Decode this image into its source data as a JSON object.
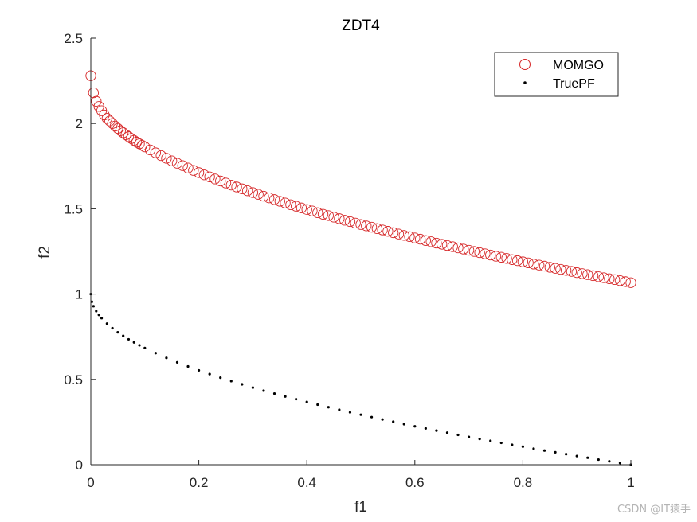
{
  "chart_data": {
    "type": "scatter",
    "title": "ZDT4",
    "xlabel": "f1",
    "ylabel": "f2",
    "xlim": [
      0,
      1
    ],
    "ylim": [
      0,
      2.5
    ],
    "xticks": [
      0,
      0.2,
      0.4,
      0.6,
      0.8,
      1
    ],
    "xtick_labels": [
      "0",
      "0.2",
      "0.4",
      "0.6",
      "0.8",
      "1"
    ],
    "yticks": [
      0,
      0.5,
      1,
      1.5,
      2,
      2.5
    ],
    "ytick_labels": [
      "0",
      "0.5",
      "1",
      "1.5",
      "2",
      "2.5"
    ],
    "grid": false,
    "legend_position": "top-right",
    "series": [
      {
        "name": "MOMGO",
        "marker": "open-circle",
        "color": "#d62728",
        "points": [
          [
            0.0,
            2.28
          ],
          [
            0.005,
            2.18
          ],
          [
            0.01,
            2.13
          ],
          [
            0.015,
            2.1
          ],
          [
            0.02,
            2.075
          ],
          [
            0.025,
            2.05
          ],
          [
            0.03,
            2.03
          ],
          [
            0.035,
            2.015
          ],
          [
            0.04,
            2.0
          ],
          [
            0.045,
            1.985
          ],
          [
            0.05,
            1.971
          ],
          [
            0.055,
            1.958
          ],
          [
            0.06,
            1.946
          ],
          [
            0.065,
            1.934
          ],
          [
            0.07,
            1.923
          ],
          [
            0.075,
            1.912
          ],
          [
            0.08,
            1.901
          ],
          [
            0.085,
            1.891
          ],
          [
            0.09,
            1.881
          ],
          [
            0.095,
            1.872
          ],
          [
            0.1,
            1.863
          ],
          [
            0.11,
            1.845
          ],
          [
            0.12,
            1.828
          ],
          [
            0.13,
            1.812
          ],
          [
            0.14,
            1.796
          ],
          [
            0.15,
            1.781
          ],
          [
            0.16,
            1.767
          ],
          [
            0.17,
            1.753
          ],
          [
            0.18,
            1.739
          ],
          [
            0.19,
            1.725
          ],
          [
            0.2,
            1.712
          ],
          [
            0.21,
            1.699
          ],
          [
            0.22,
            1.687
          ],
          [
            0.23,
            1.675
          ],
          [
            0.24,
            1.663
          ],
          [
            0.25,
            1.651
          ],
          [
            0.26,
            1.639
          ],
          [
            0.27,
            1.628
          ],
          [
            0.28,
            1.617
          ],
          [
            0.29,
            1.606
          ],
          [
            0.3,
            1.595
          ],
          [
            0.31,
            1.585
          ],
          [
            0.32,
            1.574
          ],
          [
            0.33,
            1.564
          ],
          [
            0.34,
            1.554
          ],
          [
            0.35,
            1.544
          ],
          [
            0.36,
            1.534
          ],
          [
            0.37,
            1.524
          ],
          [
            0.38,
            1.515
          ],
          [
            0.39,
            1.505
          ],
          [
            0.4,
            1.496
          ],
          [
            0.41,
            1.487
          ],
          [
            0.42,
            1.477
          ],
          [
            0.43,
            1.468
          ],
          [
            0.44,
            1.46
          ],
          [
            0.45,
            1.451
          ],
          [
            0.46,
            1.442
          ],
          [
            0.47,
            1.433
          ],
          [
            0.48,
            1.425
          ],
          [
            0.49,
            1.416
          ],
          [
            0.5,
            1.408
          ],
          [
            0.51,
            1.4
          ],
          [
            0.52,
            1.392
          ],
          [
            0.53,
            1.384
          ],
          [
            0.54,
            1.376
          ],
          [
            0.55,
            1.368
          ],
          [
            0.56,
            1.36
          ],
          [
            0.57,
            1.352
          ],
          [
            0.58,
            1.344
          ],
          [
            0.59,
            1.337
          ],
          [
            0.6,
            1.329
          ],
          [
            0.61,
            1.322
          ],
          [
            0.62,
            1.314
          ],
          [
            0.63,
            1.307
          ],
          [
            0.64,
            1.299
          ],
          [
            0.65,
            1.292
          ],
          [
            0.66,
            1.285
          ],
          [
            0.67,
            1.278
          ],
          [
            0.68,
            1.271
          ],
          [
            0.69,
            1.264
          ],
          [
            0.7,
            1.257
          ],
          [
            0.71,
            1.25
          ],
          [
            0.72,
            1.243
          ],
          [
            0.73,
            1.236
          ],
          [
            0.74,
            1.229
          ],
          [
            0.75,
            1.222
          ],
          [
            0.76,
            1.216
          ],
          [
            0.77,
            1.209
          ],
          [
            0.78,
            1.202
          ],
          [
            0.79,
            1.196
          ],
          [
            0.8,
            1.189
          ],
          [
            0.81,
            1.183
          ],
          [
            0.82,
            1.176
          ],
          [
            0.83,
            1.17
          ],
          [
            0.84,
            1.164
          ],
          [
            0.85,
            1.157
          ],
          [
            0.86,
            1.151
          ],
          [
            0.87,
            1.145
          ],
          [
            0.88,
            1.139
          ],
          [
            0.89,
            1.133
          ],
          [
            0.9,
            1.126
          ],
          [
            0.91,
            1.12
          ],
          [
            0.92,
            1.114
          ],
          [
            0.93,
            1.108
          ],
          [
            0.94,
            1.102
          ],
          [
            0.95,
            1.096
          ],
          [
            0.96,
            1.09
          ],
          [
            0.97,
            1.085
          ],
          [
            0.98,
            1.079
          ],
          [
            0.99,
            1.073
          ],
          [
            1.0,
            1.067
          ]
        ]
      },
      {
        "name": "TruePF",
        "marker": "dot",
        "color": "#000000",
        "points": [
          [
            0.0,
            1.0
          ],
          [
            0.002,
            0.955
          ],
          [
            0.005,
            0.929
          ],
          [
            0.01,
            0.9
          ],
          [
            0.015,
            0.878
          ],
          [
            0.02,
            0.859
          ],
          [
            0.03,
            0.827
          ],
          [
            0.04,
            0.8
          ],
          [
            0.05,
            0.776
          ],
          [
            0.06,
            0.755
          ],
          [
            0.07,
            0.735
          ],
          [
            0.08,
            0.717
          ],
          [
            0.09,
            0.7
          ],
          [
            0.1,
            0.684
          ],
          [
            0.12,
            0.654
          ],
          [
            0.14,
            0.626
          ],
          [
            0.16,
            0.6
          ],
          [
            0.18,
            0.576
          ],
          [
            0.2,
            0.553
          ],
          [
            0.22,
            0.531
          ],
          [
            0.24,
            0.51
          ],
          [
            0.26,
            0.49
          ],
          [
            0.28,
            0.471
          ],
          [
            0.3,
            0.452
          ],
          [
            0.32,
            0.434
          ],
          [
            0.34,
            0.417
          ],
          [
            0.36,
            0.4
          ],
          [
            0.38,
            0.384
          ],
          [
            0.4,
            0.368
          ],
          [
            0.42,
            0.352
          ],
          [
            0.44,
            0.337
          ],
          [
            0.46,
            0.322
          ],
          [
            0.48,
            0.307
          ],
          [
            0.5,
            0.293
          ],
          [
            0.52,
            0.279
          ],
          [
            0.54,
            0.265
          ],
          [
            0.56,
            0.252
          ],
          [
            0.58,
            0.238
          ],
          [
            0.6,
            0.225
          ],
          [
            0.62,
            0.213
          ],
          [
            0.64,
            0.2
          ],
          [
            0.66,
            0.188
          ],
          [
            0.68,
            0.175
          ],
          [
            0.7,
            0.163
          ],
          [
            0.72,
            0.151
          ],
          [
            0.74,
            0.14
          ],
          [
            0.76,
            0.128
          ],
          [
            0.78,
            0.117
          ],
          [
            0.8,
            0.106
          ],
          [
            0.82,
            0.094
          ],
          [
            0.84,
            0.083
          ],
          [
            0.86,
            0.073
          ],
          [
            0.88,
            0.062
          ],
          [
            0.9,
            0.051
          ],
          [
            0.92,
            0.041
          ],
          [
            0.94,
            0.03
          ],
          [
            0.96,
            0.02
          ],
          [
            0.98,
            0.01
          ],
          [
            1.0,
            0.0
          ]
        ]
      }
    ]
  },
  "watermark": "CSDN @IT猿手"
}
